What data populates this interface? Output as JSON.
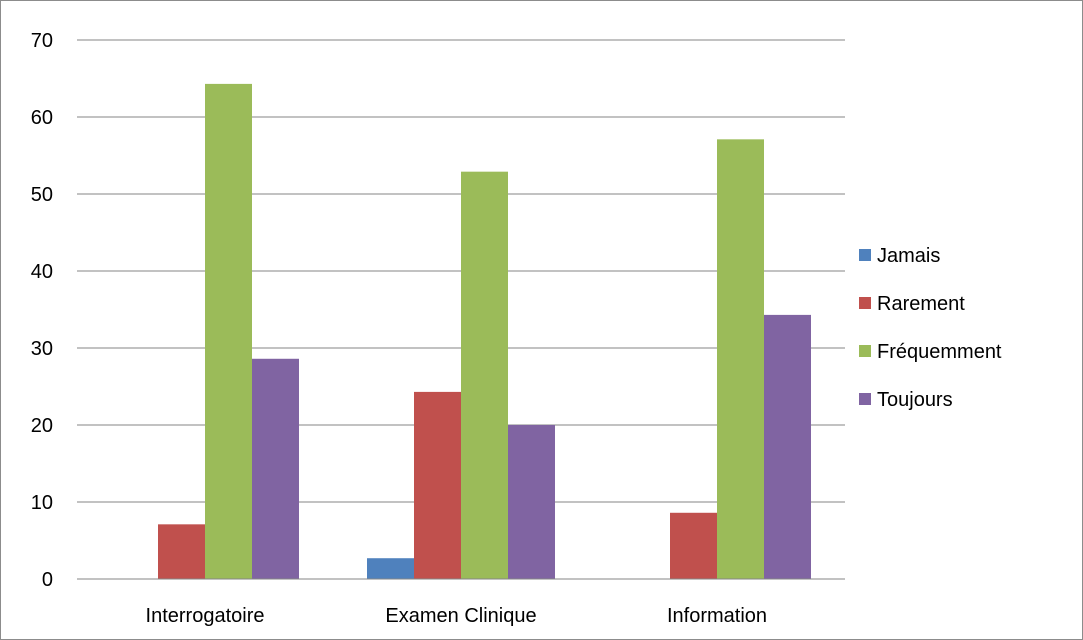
{
  "chart_data": {
    "type": "bar",
    "title": "",
    "xlabel": "",
    "ylabel": "",
    "ylim": [
      0,
      70
    ],
    "yticks": [
      0,
      10,
      20,
      30,
      40,
      50,
      60,
      70
    ],
    "grid": true,
    "legend_position": "right",
    "categories": [
      "Interrogatoire",
      "Examen Clinique",
      "Information"
    ],
    "series": [
      {
        "name": "Jamais",
        "color": "#4f81bd",
        "values": [
          0,
          2.7,
          0
        ]
      },
      {
        "name": "Rarement",
        "color": "#c0504d",
        "values": [
          7.1,
          24.3,
          8.6
        ]
      },
      {
        "name": "Fréquemment",
        "color": "#9bbb59",
        "values": [
          64.3,
          52.9,
          57.1
        ]
      },
      {
        "name": "Toujours",
        "color": "#8064a2",
        "values": [
          28.6,
          20.0,
          34.3
        ]
      }
    ]
  }
}
